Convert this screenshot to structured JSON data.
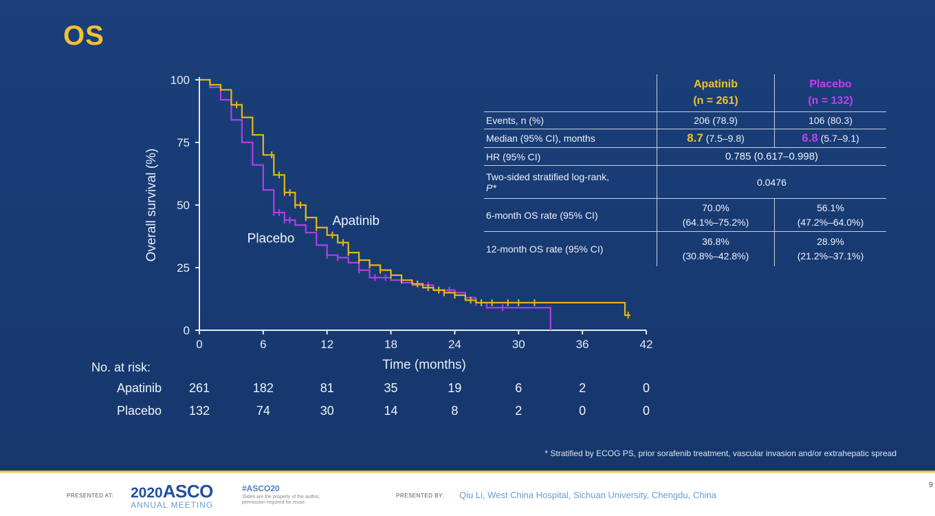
{
  "slide": {
    "title": "OS"
  },
  "chart_data": {
    "type": "line",
    "title": "",
    "xlabel": "Time (months)",
    "ylabel": "Overall survival (%)",
    "xlim": [
      0,
      42
    ],
    "ylim": [
      0,
      100
    ],
    "xticks": [
      0,
      6,
      12,
      18,
      24,
      30,
      36,
      42
    ],
    "yticks": [
      0,
      25,
      50,
      75,
      100
    ],
    "step": true,
    "series": [
      {
        "name": "Apatinib",
        "color": "#e8b812",
        "x": [
          0,
          1,
          2,
          3,
          4,
          5,
          6,
          7,
          8,
          9,
          10,
          11,
          12,
          13,
          14,
          15,
          16,
          17,
          18,
          19,
          20,
          21,
          22,
          23,
          24,
          25,
          26,
          27,
          28,
          30,
          33,
          36,
          39,
          40,
          40.5
        ],
        "y": [
          100,
          98,
          96,
          90,
          85,
          78,
          70,
          62,
          55,
          50,
          45,
          41,
          38,
          35,
          31,
          28,
          26,
          24,
          22,
          20,
          18.5,
          17,
          16,
          15,
          14,
          12,
          11,
          11,
          11,
          11,
          11,
          11,
          11,
          6,
          6
        ],
        "censor_x": [
          3.5,
          6.8,
          7.5,
          8,
          8.5,
          9,
          9.5,
          10,
          11,
          12.5,
          13.5,
          14,
          15,
          16,
          17,
          18,
          19,
          20.5,
          21.5,
          22.5,
          23,
          24,
          25.5,
          26.5,
          27.5,
          29,
          30,
          31.5,
          40.3
        ]
      },
      {
        "name": "Placebo",
        "color": "#b23ee6",
        "x": [
          0,
          1,
          2,
          3,
          4,
          5,
          6,
          7,
          8,
          9,
          10,
          11,
          12,
          13,
          14,
          15,
          16,
          17,
          18,
          19,
          20,
          22,
          24,
          25,
          26,
          27,
          30,
          32,
          33
        ],
        "y": [
          100,
          97,
          92,
          84,
          75,
          66,
          56,
          47,
          44,
          42,
          39,
          34,
          30,
          29,
          27,
          24,
          21,
          21,
          20,
          19,
          18,
          16,
          15,
          13,
          11,
          9,
          9,
          9,
          0
        ],
        "censor_x": [
          7,
          7.5,
          8,
          8.5,
          12,
          13,
          15,
          16.5,
          17.5,
          21.5,
          22.5,
          23.5,
          26,
          28.5
        ]
      }
    ],
    "annotations": [
      {
        "text": "Apatinib",
        "x": 12.5,
        "y": 42
      },
      {
        "text": "Placebo",
        "x": 4.5,
        "y": 35
      }
    ],
    "number_at_risk": {
      "label": "No. at risk:",
      "times": [
        0,
        6,
        12,
        18,
        24,
        30,
        36,
        42
      ],
      "rows": [
        {
          "name": "Apatinib",
          "values": [
            261,
            182,
            81,
            35,
            19,
            6,
            2,
            0
          ]
        },
        {
          "name": "Placebo",
          "values": [
            132,
            74,
            30,
            14,
            8,
            2,
            0,
            0
          ]
        }
      ]
    }
  },
  "table": {
    "headers": [
      {
        "name": "Apatinib",
        "n": "(n = 261)"
      },
      {
        "name": "Placebo",
        "n": "(n = 132)"
      }
    ],
    "rows": {
      "events": {
        "label": "Events, n (%)",
        "apatinib": "206 (78.9)",
        "placebo": "106 (80.3)"
      },
      "median": {
        "label": "Median (95% CI), months",
        "apatinib_value": "8.7",
        "apatinib_ci": " (7.5–9.8)",
        "placebo_value": "6.8",
        "placebo_ci": " (5.7–9.1)"
      },
      "hr": {
        "label": "HR (95% CI)",
        "value": "0.785 (0.617–0.998)"
      },
      "logrank": {
        "label": "Two-sided stratified log-rank,",
        "label_p": "P*",
        "value": "0.0476"
      },
      "os6": {
        "label": "6-month OS rate (95% CI)",
        "apatinib_rate": "70.0%",
        "apatinib_ci": "(64.1%–75.2%)",
        "placebo_rate": "56.1%",
        "placebo_ci": "(47.2%–64.0%)"
      },
      "os12": {
        "label": "12-month OS rate (95% CI)",
        "apatinib_rate": "36.8%",
        "apatinib_ci": "(30.8%–42.8%)",
        "placebo_rate": "28.9%",
        "placebo_ci": "(21.2%–37.1%)"
      }
    }
  },
  "footnote": "* Stratified by ECOG PS, prior sorafenib treatment, vascular invasion and/or extrahepatic spread",
  "footer": {
    "presented_at": "PRESENTED AT:",
    "asco_year": "2020",
    "asco_name": "ASCO",
    "asco_sub": "ANNUAL MEETING",
    "hashtag": "#ASCO20",
    "slides_note": "Slides are the property of the author, permission required for reuse.",
    "presented_by": "PRESENTED BY:",
    "presenter": "Qiu Li, West China Hospital, Sichuan University, Chengdu, China",
    "page": "9"
  }
}
